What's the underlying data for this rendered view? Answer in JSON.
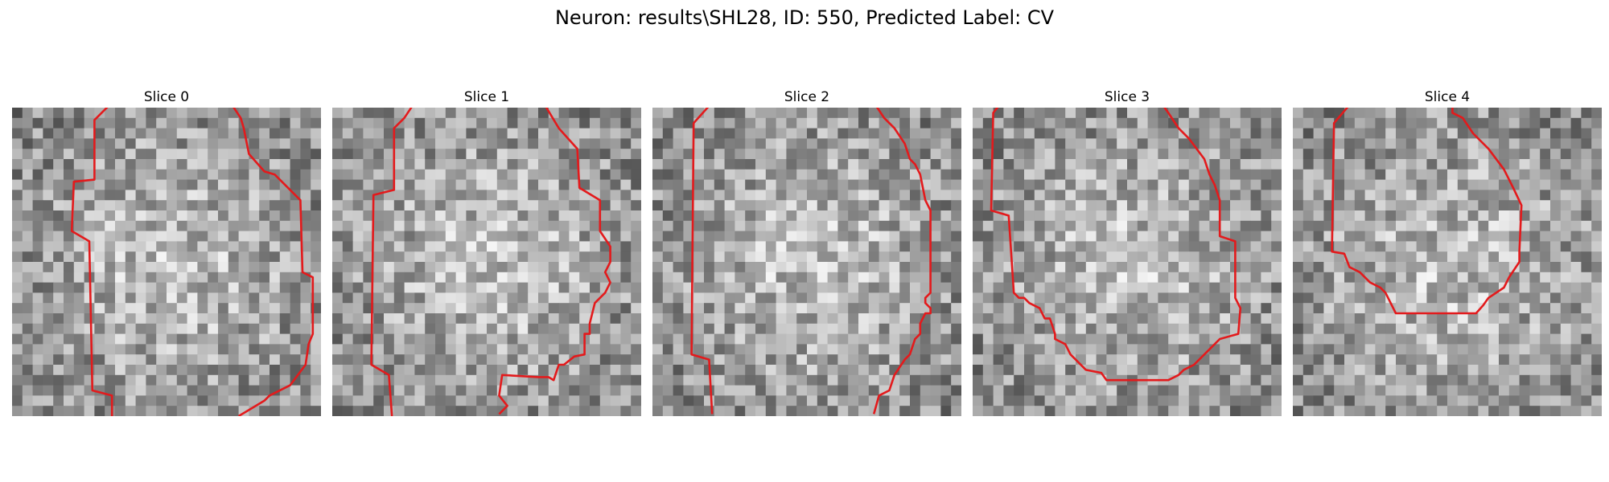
{
  "figure": {
    "title": "Neuron: results\\SHL28, ID: 550, Predicted Label: CV"
  },
  "contour_color": "#e31a1c",
  "grid": 30,
  "slices": [
    {
      "title": "Slice 0",
      "seed": 11,
      "contours": [
        [
          [
            9.7,
            -0.5
          ],
          [
            8,
            1.2
          ],
          [
            8,
            7
          ],
          [
            6,
            7.2
          ],
          [
            5.8,
            12
          ],
          [
            7.5,
            13
          ],
          [
            7.8,
            27.5
          ],
          [
            9.7,
            28
          ],
          [
            9.7,
            30
          ]
        ],
        [
          [
            21.2,
            -0.5
          ],
          [
            22.2,
            1
          ],
          [
            22.5,
            2
          ],
          [
            23,
            4.5
          ],
          [
            24.5,
            6.2
          ],
          [
            25.5,
            6.5
          ],
          [
            28,
            9
          ],
          [
            28.2,
            16
          ],
          [
            29.2,
            16.5
          ],
          [
            29.2,
            22
          ],
          [
            28.8,
            23
          ],
          [
            28.5,
            25
          ],
          [
            27,
            27
          ],
          [
            25,
            28
          ],
          [
            24.5,
            28.5
          ],
          [
            22,
            30
          ]
        ]
      ]
    },
    {
      "title": "Slice 1",
      "seed": 23,
      "contours": [
        [
          [
            8,
            -0.5
          ],
          [
            7,
            1
          ],
          [
            6,
            2
          ],
          [
            6,
            8
          ],
          [
            4,
            8.5
          ],
          [
            3.8,
            25
          ],
          [
            5.5,
            26
          ],
          [
            5.8,
            30
          ]
        ],
        [
          [
            20.5,
            -0.5
          ],
          [
            22,
            2
          ],
          [
            23.8,
            4
          ],
          [
            24,
            7.8
          ],
          [
            26,
            9
          ],
          [
            26,
            12
          ],
          [
            27,
            13.5
          ],
          [
            27,
            15
          ],
          [
            26.5,
            16
          ],
          [
            27,
            17
          ],
          [
            26.5,
            18
          ],
          [
            25.5,
            19
          ],
          [
            25,
            21
          ],
          [
            25,
            22
          ],
          [
            24.5,
            22
          ],
          [
            24.5,
            24
          ],
          [
            23.5,
            24.2
          ],
          [
            22.5,
            25
          ],
          [
            22,
            25
          ],
          [
            21.5,
            26.5
          ],
          [
            21,
            26.2
          ],
          [
            20,
            26.2
          ],
          [
            16.5,
            26
          ],
          [
            16.2,
            28
          ],
          [
            17,
            29
          ],
          [
            16.2,
            29.8
          ]
        ]
      ]
    },
    {
      "title": "Slice 2",
      "seed": 37,
      "contours": [
        [
          [
            5.8,
            -0.5
          ],
          [
            4,
            1.5
          ],
          [
            3.8,
            24
          ],
          [
            5.5,
            24.5
          ],
          [
            5.8,
            29.8
          ]
        ],
        [
          [
            21.5,
            -0.5
          ],
          [
            22.5,
            1
          ],
          [
            23.5,
            2
          ],
          [
            24.5,
            3.5
          ],
          [
            25,
            5
          ],
          [
            25.5,
            5.5
          ],
          [
            26,
            6.5
          ],
          [
            26.5,
            9
          ],
          [
            27,
            10
          ],
          [
            27,
            18
          ],
          [
            26.5,
            18.5
          ],
          [
            26.5,
            19
          ],
          [
            27,
            19.5
          ],
          [
            27,
            20
          ],
          [
            26.5,
            20
          ],
          [
            26,
            21
          ],
          [
            26,
            22
          ],
          [
            25.5,
            22.5
          ],
          [
            25,
            24
          ],
          [
            24.5,
            24.5
          ],
          [
            23.5,
            26
          ],
          [
            23,
            27.5
          ],
          [
            22,
            28
          ],
          [
            21.5,
            29.8
          ]
        ]
      ]
    },
    {
      "title": "Slice 3",
      "seed": 51,
      "contours": [
        [
          [
            2.8,
            -0.5
          ],
          [
            2,
            0.5
          ],
          [
            1.8,
            10
          ],
          [
            3.5,
            10.5
          ],
          [
            4,
            18
          ],
          [
            4.5,
            18.5
          ],
          [
            5,
            18.5
          ],
          [
            5.5,
            19
          ],
          [
            6.5,
            19.5
          ],
          [
            7,
            20.5
          ],
          [
            7.5,
            20.5
          ],
          [
            8,
            22
          ],
          [
            8,
            22.5
          ],
          [
            9,
            23
          ],
          [
            9.5,
            24
          ],
          [
            10,
            24.5
          ],
          [
            11,
            25.5
          ],
          [
            12.5,
            25.8
          ],
          [
            13,
            26.5
          ],
          [
            19,
            26.5
          ],
          [
            20,
            26
          ],
          [
            20.5,
            25.5
          ],
          [
            21.5,
            25
          ],
          [
            22.5,
            24
          ],
          [
            23,
            23.5
          ],
          [
            24,
            22.5
          ],
          [
            25.8,
            22
          ],
          [
            26,
            19.5
          ],
          [
            25.5,
            18.5
          ],
          [
            25.5,
            13
          ],
          [
            24,
            12.5
          ],
          [
            24,
            9
          ],
          [
            23.5,
            7.5
          ],
          [
            23,
            6.5
          ],
          [
            22.5,
            5
          ],
          [
            21,
            3
          ],
          [
            20,
            2
          ],
          [
            19,
            0.5
          ],
          [
            18.5,
            -0.2
          ],
          [
            18.2,
            -0.5
          ]
        ]
      ]
    },
    {
      "title": "Slice 4",
      "seed": 67,
      "contours": [
        [
          [
            5.7,
            -0.5
          ],
          [
            4,
            1.5
          ],
          [
            3.8,
            14
          ],
          [
            5,
            14.2
          ],
          [
            5.5,
            15.5
          ],
          [
            6.5,
            16
          ],
          [
            7,
            16.5
          ],
          [
            7.5,
            17
          ],
          [
            8.5,
            17.5
          ],
          [
            9,
            18
          ],
          [
            9.5,
            19
          ],
          [
            10,
            20
          ],
          [
            17.8,
            20
          ],
          [
            18.5,
            19.2
          ],
          [
            19,
            18.5
          ],
          [
            20.5,
            17.5
          ],
          [
            21,
            16.5
          ],
          [
            22,
            15
          ],
          [
            22,
            14
          ],
          [
            22.2,
            9.5
          ],
          [
            21.5,
            8
          ],
          [
            21,
            7
          ],
          [
            20.5,
            6
          ],
          [
            19,
            4
          ],
          [
            17.5,
            2.5
          ],
          [
            16.5,
            1
          ],
          [
            15.5,
            0.5
          ],
          [
            15.5,
            -0.5
          ]
        ]
      ]
    }
  ]
}
